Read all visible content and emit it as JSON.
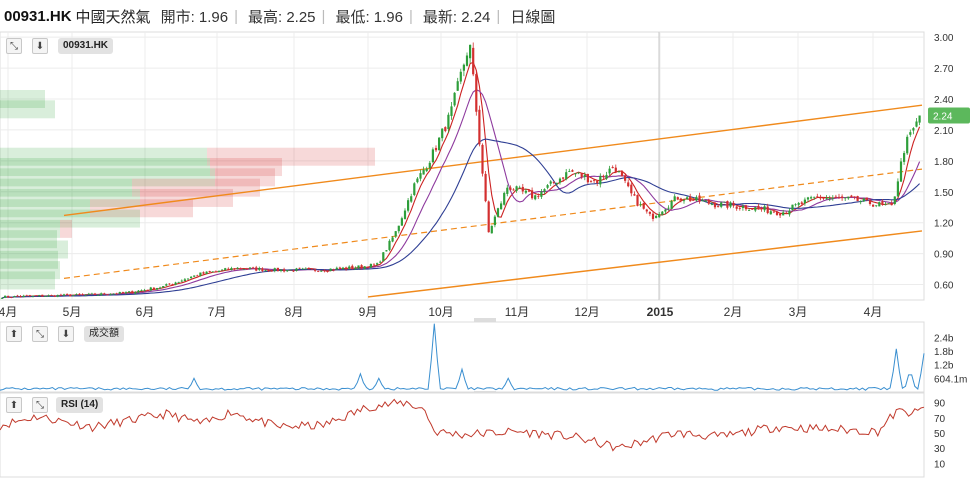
{
  "header": {
    "symbol": "00931.HK",
    "name": "中國天然氣",
    "open": "開市: 1.96",
    "high": "最高: 2.25",
    "low": "最低: 1.96",
    "last": "最新: 2.24",
    "chart_type": "日線圖"
  },
  "price_panel": {
    "label": "00931.HK",
    "last_badge": "2.24"
  },
  "volume_panel": {
    "label": "成交額"
  },
  "rsi_panel": {
    "label": "RSI (14)"
  },
  "icons": [
    "expand-icon",
    "arrow-down-icon",
    "arrow-up-icon"
  ],
  "colors": {
    "candle_up": "#2e9e3a",
    "candle_down": "#d32f2f",
    "ma_short": "#cc2222",
    "ma_mid": "#8e3a9e",
    "ma_long": "#2f3f94",
    "channel": "#f08a1c",
    "volume_line": "#3a8fd0",
    "rsi_line": "#c0392b",
    "badge": "#5cb85c"
  },
  "chart_data": [
    {
      "type": "candlestick",
      "title": "00931.HK",
      "y_ticks": [
        "3.00",
        "2.70",
        "2.40",
        "2.10",
        "1.80",
        "1.50",
        "1.20",
        "0.90",
        "0.60"
      ],
      "ylim": [
        0.45,
        3.05
      ],
      "x_ticks": [
        "4月",
        "5月",
        "6月",
        "7月",
        "8月",
        "9月",
        "10月",
        "11月",
        "12月",
        "2015",
        "2月",
        "3月",
        "4月"
      ],
      "last_price": 2.24,
      "close_anchors": [
        [
          "4月",
          0.48
        ],
        [
          "5月",
          0.5
        ],
        [
          "5月",
          0.52
        ],
        [
          "6月",
          0.58
        ],
        [
          "6月",
          0.7
        ],
        [
          "7月",
          0.76
        ],
        [
          "7月",
          0.74
        ],
        [
          "8月",
          0.74
        ],
        [
          "8月",
          0.76
        ],
        [
          "9月",
          0.79
        ],
        [
          "9月",
          1.1
        ],
        [
          "9月",
          1.55
        ],
        [
          "9月",
          1.85
        ],
        [
          "10月",
          2.25
        ],
        [
          "10月",
          2.95
        ],
        [
          "10月",
          1.1
        ],
        [
          "10月",
          1.55
        ],
        [
          "11月",
          1.45
        ],
        [
          "11月",
          1.7
        ],
        [
          "12月",
          1.6
        ],
        [
          "12月",
          1.75
        ],
        [
          "12月",
          1.45
        ],
        [
          "12月",
          1.25
        ],
        [
          "2015",
          1.45
        ],
        [
          "2015",
          1.38
        ],
        [
          "2月",
          1.35
        ],
        [
          "2月",
          1.3
        ],
        [
          "3月",
          1.45
        ],
        [
          "3月",
          1.42
        ],
        [
          "4月",
          1.35
        ],
        [
          "4月",
          1.95
        ],
        [
          "4月",
          2.24
        ]
      ],
      "moving_averages": [
        "short",
        "medium",
        "long"
      ],
      "trend_channel": {
        "upper": [
          1.27,
          2.34
        ],
        "middle": [
          0.66,
          1.72
        ],
        "lower": [
          0.48,
          1.12
        ]
      },
      "volume_profile": {
        "price_levels": [
          2.4,
          2.3,
          1.84,
          1.74,
          1.64,
          1.54,
          1.44,
          1.34,
          1.24,
          1.14,
          1.04,
          0.94,
          0.84,
          0.74,
          0.64
        ],
        "up_volume": [
          45,
          55,
          207,
          210,
          215,
          132,
          140,
          90,
          140,
          60,
          57,
          68,
          58,
          60,
          55
        ],
        "down_volume": [
          0,
          0,
          168,
          72,
          60,
          128,
          93,
          103,
          0,
          12,
          0,
          0,
          0,
          0,
          0
        ]
      }
    },
    {
      "type": "line",
      "title": "成交額",
      "y_ticks": [
        "2.4b",
        "1.8b",
        "1.2b",
        "604.1m"
      ],
      "ylim": [
        0,
        2.9
      ],
      "unit": "b",
      "spikes": [
        [
          0.21,
          0.5
        ],
        [
          0.39,
          0.7
        ],
        [
          0.41,
          0.5
        ],
        [
          0.47,
          2.9
        ],
        [
          0.5,
          0.9
        ],
        [
          0.55,
          0.5
        ],
        [
          0.97,
          1.8
        ],
        [
          0.985,
          0.9
        ],
        [
          1.0,
          1.6
        ]
      ]
    },
    {
      "type": "line",
      "title": "RSI (14)",
      "y_ticks": [
        "90",
        "70",
        "50",
        "30",
        "10"
      ],
      "ylim": [
        0,
        100
      ],
      "anchors": [
        [
          0.0,
          60
        ],
        [
          0.04,
          72
        ],
        [
          0.1,
          58
        ],
        [
          0.18,
          75
        ],
        [
          0.22,
          62
        ],
        [
          0.25,
          78
        ],
        [
          0.3,
          58
        ],
        [
          0.35,
          60
        ],
        [
          0.4,
          85
        ],
        [
          0.44,
          90
        ],
        [
          0.46,
          80
        ],
        [
          0.47,
          52
        ],
        [
          0.5,
          48
        ],
        [
          0.56,
          52
        ],
        [
          0.62,
          45
        ],
        [
          0.67,
          30
        ],
        [
          0.73,
          50
        ],
        [
          0.78,
          45
        ],
        [
          0.84,
          58
        ],
        [
          0.9,
          55
        ],
        [
          0.95,
          52
        ],
        [
          0.97,
          78
        ],
        [
          0.99,
          76
        ],
        [
          1.0,
          82
        ]
      ]
    }
  ]
}
